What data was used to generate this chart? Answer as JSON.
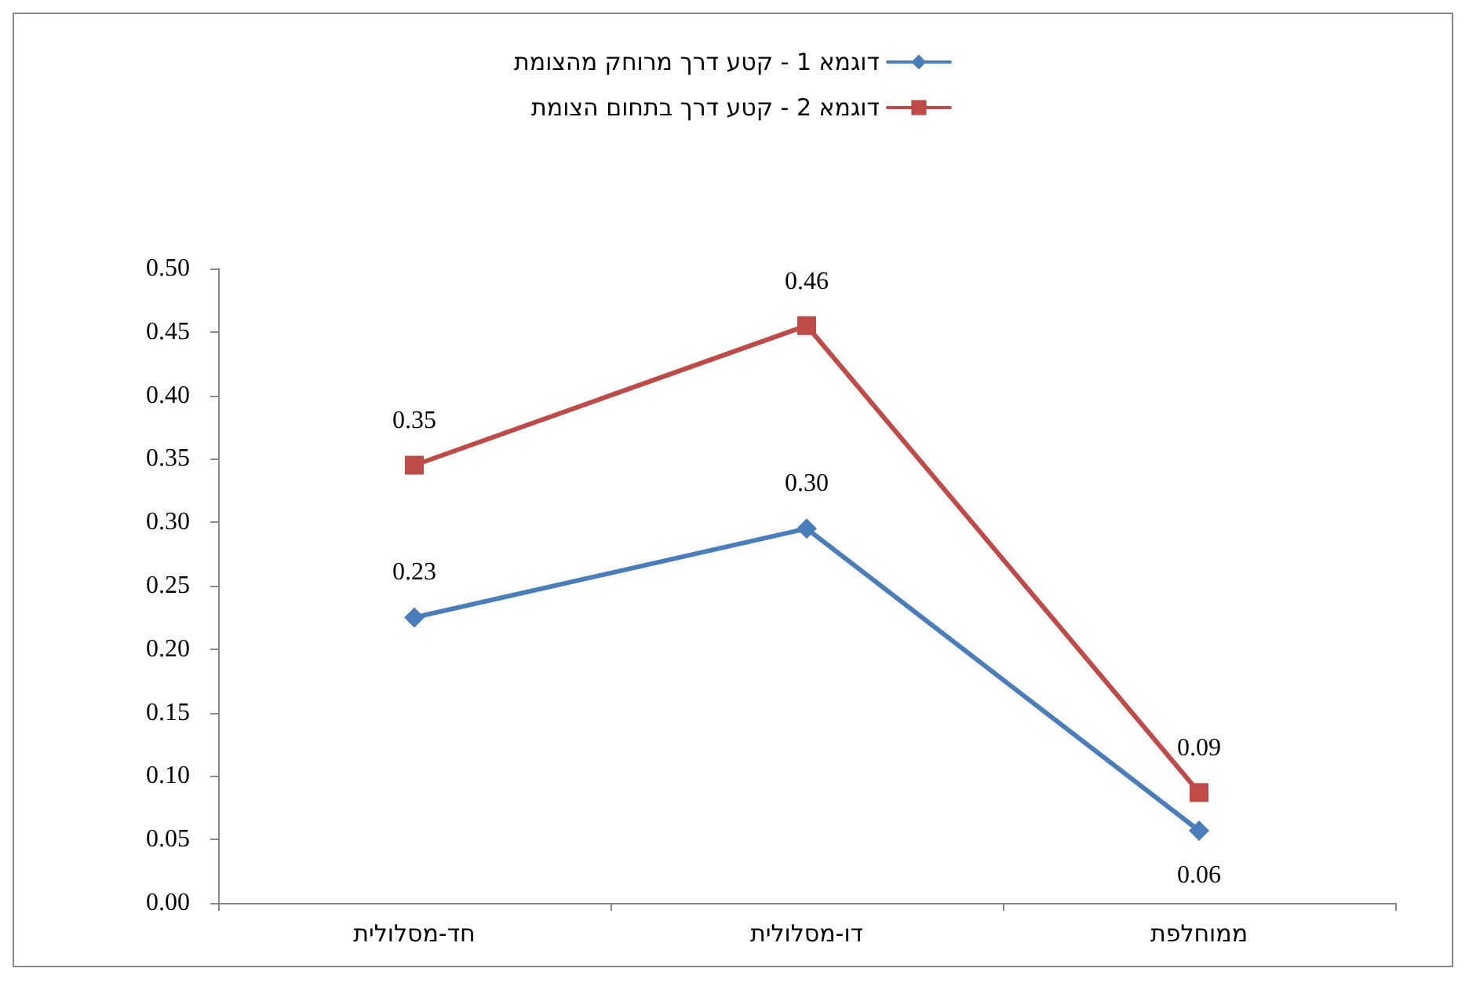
{
  "chart_data": {
    "type": "line",
    "categories": [
      "חד-מסלולית",
      "דו-מסלולית",
      "ממוחלפת"
    ],
    "series": [
      {
        "name": "דוגמא 1 - קטע דרך מרוחק מהצומת",
        "color": "#4a7ebb",
        "marker": "diamond",
        "values": [
          0.225,
          0.295,
          0.057
        ],
        "value_labels": [
          "0.23",
          "0.30",
          "0.06"
        ]
      },
      {
        "name": "דוגמא 2 - קטע דרך בתחום הצומת",
        "color": "#be4b48",
        "marker": "square",
        "values": [
          0.345,
          0.455,
          0.087
        ],
        "value_labels": [
          "0.35",
          "0.46",
          "0.09"
        ]
      }
    ],
    "ylim": [
      0,
      0.5
    ],
    "yticks": [
      {
        "value": 0,
        "label": "0.00"
      },
      0.05,
      {
        "value": 0.1,
        "label": "0.10"
      },
      0.15,
      {
        "value": 0.2,
        "label": "0.20"
      },
      0.25,
      {
        "value": 0.3,
        "label": "0.30"
      },
      0.35,
      {
        "value": 0.4,
        "label": "0.40"
      },
      0.45,
      {
        "value": 0.5,
        "label": "0.50"
      }
    ],
    "grid": false,
    "legend": "top"
  }
}
